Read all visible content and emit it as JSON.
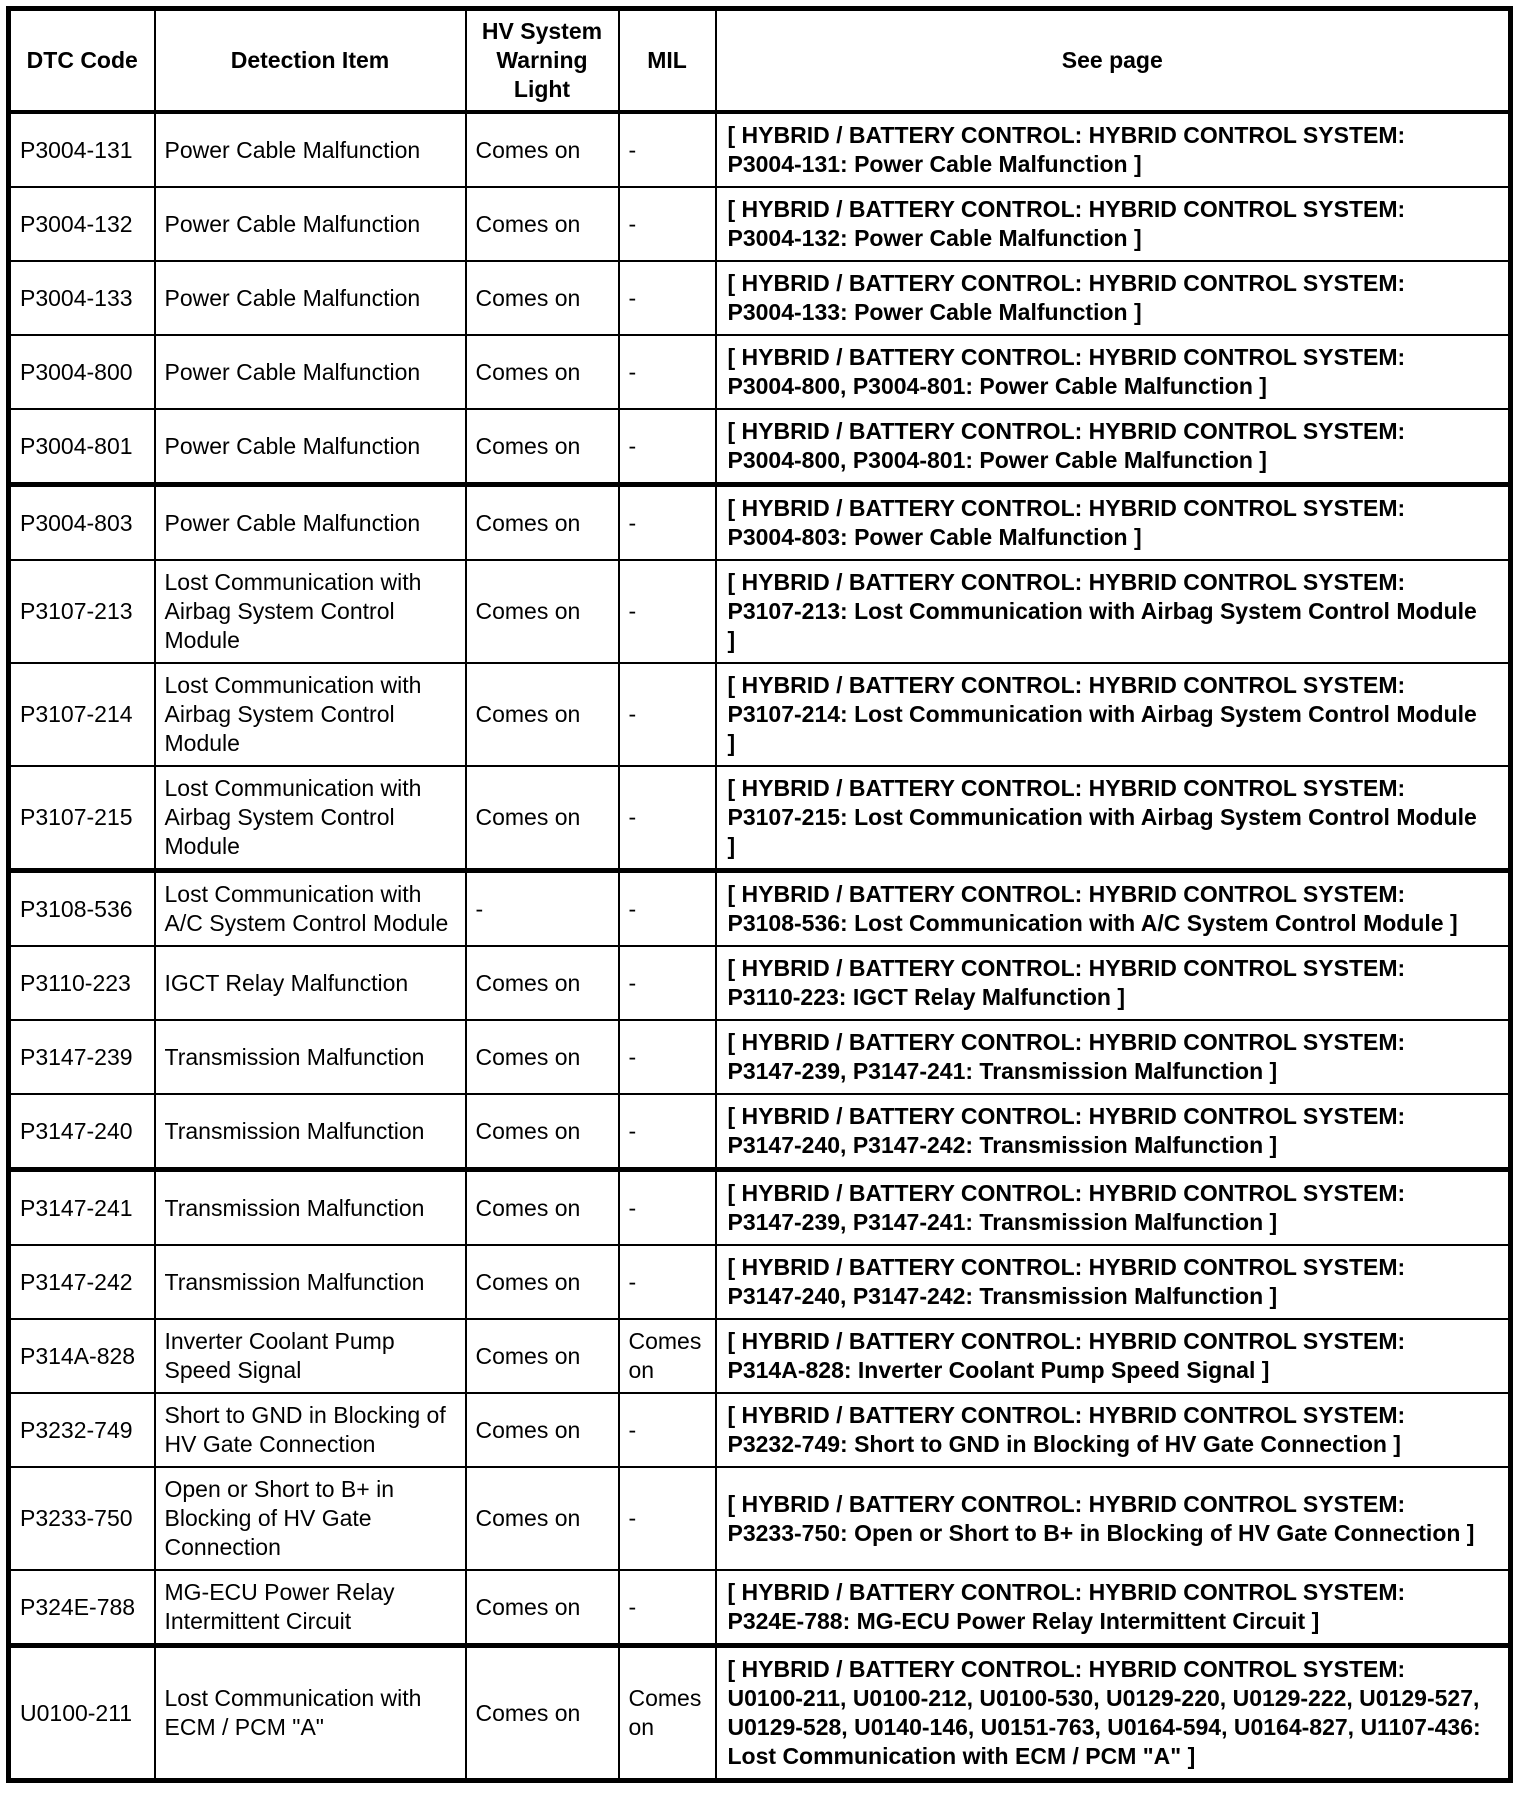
{
  "document": {
    "kind": "dtc-code-table",
    "background_color": "#ffffff",
    "text_color": "#000000",
    "border_color": "#000000"
  },
  "table": {
    "columns": [
      "DTC Code",
      "Detection Item",
      "HV System Warning Light",
      "MIL",
      "See page"
    ],
    "rows": [
      {
        "dtc": "P3004-131",
        "item": "Power Cable Malfunction",
        "hv_warning_light": "Comes on",
        "mil": "-",
        "see_page": "[ HYBRID / BATTERY CONTROL: HYBRID CONTROL SYSTEM: P3004-131: Power Cable Malfunction ]"
      },
      {
        "dtc": "P3004-132",
        "item": "Power Cable Malfunction",
        "hv_warning_light": "Comes on",
        "mil": "-",
        "see_page": "[ HYBRID / BATTERY CONTROL: HYBRID CONTROL SYSTEM: P3004-132: Power Cable Malfunction ]"
      },
      {
        "dtc": "P3004-133",
        "item": "Power Cable Malfunction",
        "hv_warning_light": "Comes on",
        "mil": "-",
        "see_page": "[ HYBRID / BATTERY CONTROL: HYBRID CONTROL SYSTEM: P3004-133: Power Cable Malfunction ]"
      },
      {
        "dtc": "P3004-800",
        "item": "Power Cable Malfunction",
        "hv_warning_light": "Comes on",
        "mil": "-",
        "see_page": "[ HYBRID / BATTERY CONTROL: HYBRID CONTROL SYSTEM: P3004-800, P3004-801: Power Cable Malfunction ]"
      },
      {
        "dtc": "P3004-801",
        "item": "Power Cable Malfunction",
        "hv_warning_light": "Comes on",
        "mil": "-",
        "see_page": "[ HYBRID / BATTERY CONTROL: HYBRID CONTROL SYSTEM: P3004-800, P3004-801: Power Cable Malfunction ]"
      },
      {
        "dtc": "P3004-803",
        "item": "Power Cable Malfunction",
        "hv_warning_light": "Comes on",
        "mil": "-",
        "see_page": "[ HYBRID / BATTERY CONTROL: HYBRID CONTROL SYSTEM: P3004-803: Power Cable Malfunction ]"
      },
      {
        "dtc": "P3107-213",
        "item": "Lost Communication with Airbag System Control Module",
        "hv_warning_light": "Comes on",
        "mil": "-",
        "see_page": "[ HYBRID / BATTERY CONTROL: HYBRID CONTROL SYSTEM: P3107-213: Lost Communication with Airbag System Control Module ]"
      },
      {
        "dtc": "P3107-214",
        "item": "Lost Communication with Airbag System Control Module",
        "hv_warning_light": "Comes on",
        "mil": "-",
        "see_page": "[ HYBRID / BATTERY CONTROL: HYBRID CONTROL SYSTEM: P3107-214: Lost Communication with Airbag System Control Module ]"
      },
      {
        "dtc": "P3107-215",
        "item": "Lost Communication with Airbag System Control Module",
        "hv_warning_light": "Comes on",
        "mil": "-",
        "see_page": "[ HYBRID / BATTERY CONTROL: HYBRID CONTROL SYSTEM: P3107-215: Lost Communication with Airbag System Control Module ]"
      },
      {
        "dtc": "P3108-536",
        "item": "Lost Communication with A/C System Control Module",
        "hv_warning_light": "-",
        "mil": "-",
        "see_page": "[ HYBRID / BATTERY CONTROL: HYBRID CONTROL SYSTEM: P3108-536: Lost Communication with A/C System Control Module ]"
      },
      {
        "dtc": "P3110-223",
        "item": "IGCT Relay Malfunction",
        "hv_warning_light": "Comes on",
        "mil": "-",
        "see_page": "[ HYBRID / BATTERY CONTROL: HYBRID CONTROL SYSTEM: P3110-223: IGCT Relay Malfunction ]"
      },
      {
        "dtc": "P3147-239",
        "item": "Transmission Malfunction",
        "hv_warning_light": "Comes on",
        "mil": "-",
        "see_page": "[ HYBRID / BATTERY CONTROL: HYBRID CONTROL SYSTEM: P3147-239, P3147-241: Transmission Malfunction ]"
      },
      {
        "dtc": "P3147-240",
        "item": "Transmission Malfunction",
        "hv_warning_light": "Comes on",
        "mil": "-",
        "see_page": "[ HYBRID / BATTERY CONTROL: HYBRID CONTROL SYSTEM: P3147-240, P3147-242: Transmission Malfunction ]"
      },
      {
        "dtc": "P3147-241",
        "item": "Transmission Malfunction",
        "hv_warning_light": "Comes on",
        "mil": "-",
        "see_page": "[ HYBRID / BATTERY CONTROL: HYBRID CONTROL SYSTEM: P3147-239, P3147-241: Transmission Malfunction ]"
      },
      {
        "dtc": "P3147-242",
        "item": "Transmission Malfunction",
        "hv_warning_light": "Comes on",
        "mil": "-",
        "see_page": "[ HYBRID / BATTERY CONTROL: HYBRID CONTROL SYSTEM: P3147-240, P3147-242: Transmission Malfunction ]"
      },
      {
        "dtc": "P314A-828",
        "item": "Inverter Coolant Pump Speed Signal",
        "hv_warning_light": "Comes on",
        "mil": "Comes on",
        "see_page": "[ HYBRID / BATTERY CONTROL: HYBRID CONTROL SYSTEM: P314A-828: Inverter Coolant Pump Speed Signal ]"
      },
      {
        "dtc": "P3232-749",
        "item": "Short to GND in Blocking of HV Gate Connection",
        "hv_warning_light": "Comes on",
        "mil": "-",
        "see_page": "[ HYBRID / BATTERY CONTROL: HYBRID CONTROL SYSTEM: P3232-749: Short to GND in Blocking of HV Gate Connection ]"
      },
      {
        "dtc": "P3233-750",
        "item": "Open or Short to B+ in Blocking of HV Gate Connection",
        "hv_warning_light": "Comes on",
        "mil": "-",
        "see_page": "[ HYBRID / BATTERY CONTROL: HYBRID CONTROL SYSTEM: P3233-750: Open or Short to B+ in Blocking of HV Gate Connection ]"
      },
      {
        "dtc": "P324E-788",
        "item": "MG-ECU Power Relay Intermittent Circuit",
        "hv_warning_light": "Comes on",
        "mil": "-",
        "see_page": "[ HYBRID / BATTERY CONTROL: HYBRID CONTROL SYSTEM: P324E-788: MG-ECU Power Relay Intermittent Circuit ]"
      },
      {
        "dtc": "U0100-211",
        "item": "Lost Communication with ECM / PCM \"A\"",
        "hv_warning_light": "Comes on",
        "mil": "Comes on",
        "see_page": "[ HYBRID / BATTERY CONTROL: HYBRID CONTROL SYSTEM: U0100-211, U0100-212, U0100-530, U0129-220, U0129-222, U0129-527, U0129-528, U0140-146, U0151-763, U0164-594, U0164-827, U1107-436: Lost Communication with ECM / PCM \"A\" ]"
      }
    ]
  }
}
